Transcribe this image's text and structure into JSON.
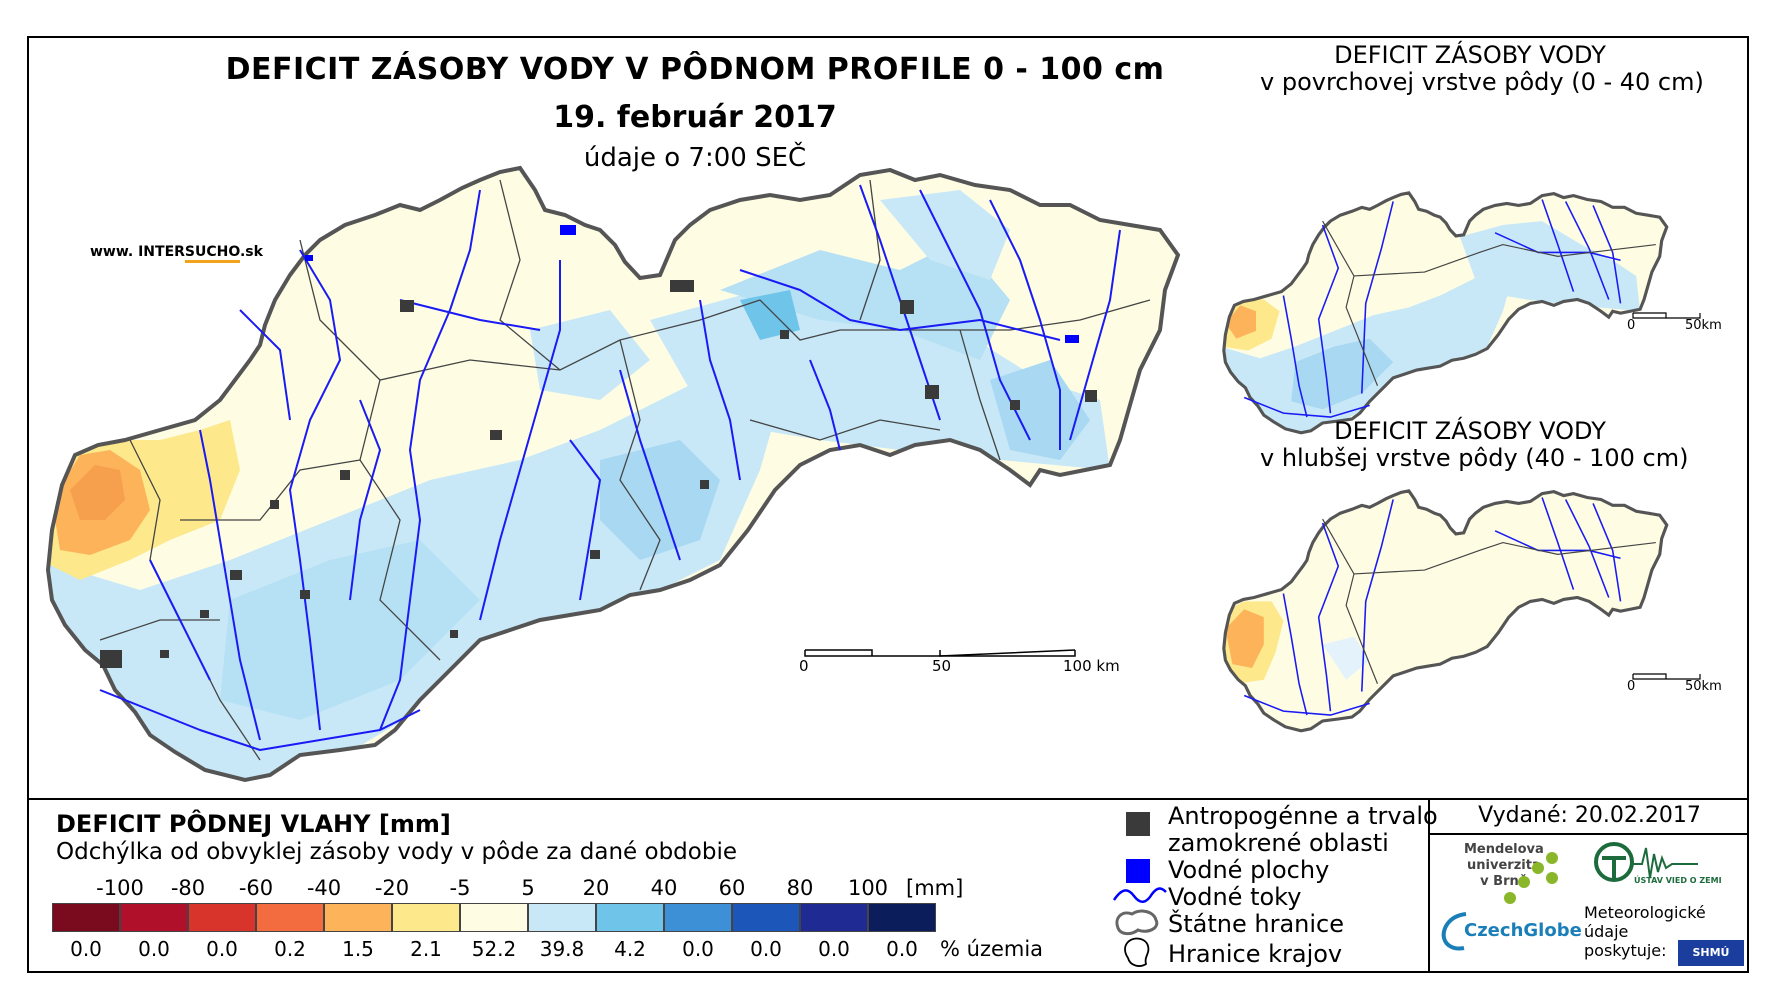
{
  "main_map": {
    "title": "DEFICIT ZÁSOBY VODY V PÔDNOM PROFILE 0 - 100 cm",
    "date": "19. február 2017",
    "time_note": "údaje o 7:00 SEČ",
    "website_prefix": "www. INTER",
    "website_brand": "SUCHO",
    "website_suffix": ".sk",
    "scale_labels": [
      "0",
      "50",
      "100 km"
    ]
  },
  "inset_top": {
    "title_line1": "DEFICIT ZÁSOBY VODY",
    "title_line2": "v povrchovej vrstve pôdy (0 - 40 cm)",
    "scale_labels": [
      "0",
      "50km"
    ]
  },
  "inset_bottom": {
    "title_line1": "DEFICIT ZÁSOBY VODY",
    "title_line2": "v hlubšej vrstve pôdy (40 - 100 cm)",
    "scale_labels": [
      "0",
      "50km"
    ]
  },
  "color_legend": {
    "title": "DEFICIT PÔDNEJ VLAHY [mm]",
    "subtitle": "Odchýlka od obvyklej zásoby vody v pôde za dané obdobie",
    "ticks": [
      "-100",
      "-80",
      "-60",
      "-40",
      "-20",
      "-5",
      "5",
      "20",
      "40",
      "60",
      "80",
      "100"
    ],
    "unit": "[mm]",
    "colors": [
      "#7a0a1e",
      "#b0102a",
      "#d9342b",
      "#f36c3f",
      "#fcb35a",
      "#fde88c",
      "#fefde4",
      "#c8e8f7",
      "#6fc4ea",
      "#3d8fd6",
      "#1c56b8",
      "#1f2a93",
      "#0c1d5c"
    ],
    "percentages": [
      "0.0",
      "0.0",
      "0.0",
      "0.2",
      "1.5",
      "2.1",
      "52.2",
      "39.8",
      "4.2",
      "0.0",
      "0.0",
      "0.0",
      "0.0"
    ],
    "percent_label": "% územia"
  },
  "symbol_legend": {
    "items": [
      {
        "label_line1": "Antropogénne a trvalo",
        "label_line2": "zamokrené oblasti",
        "icon": "dark-square-icon",
        "color": "#3a3a3a"
      },
      {
        "label_line1": "Vodné plochy",
        "icon": "blue-square-icon",
        "color": "#0000ff"
      },
      {
        "label_line1": "Vodné toky",
        "icon": "river-line-icon",
        "color": "#0000ff"
      },
      {
        "label_line1": "Štátne hranice",
        "icon": "state-border-icon"
      },
      {
        "label_line1": "Hranice krajov",
        "icon": "region-border-icon"
      }
    ]
  },
  "issued": "Vydané: 20.02.2017",
  "logos": {
    "mendel_line1": "Mendelova",
    "mendel_line2": "univerzita",
    "mendel_line3": "v Brně",
    "czechglobe": "CzechGlobe",
    "uvgz": "ÚSTAV VIED O ZEMI",
    "met_line1": "Meteorologické",
    "met_line2": "údaje",
    "met_line3": "poskytuje:",
    "shmu": "SHMÚ"
  }
}
